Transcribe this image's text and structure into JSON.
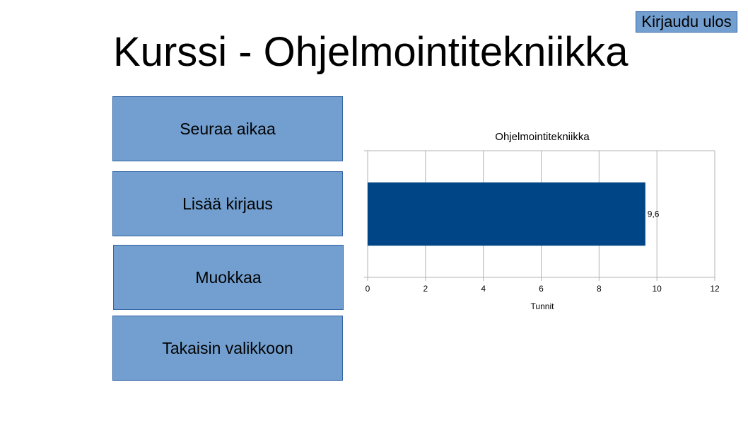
{
  "header": {
    "title": "Kurssi - Ohjelmointitekniikka",
    "logout_label": "Kirjaudu ulos"
  },
  "menu": {
    "items": [
      {
        "label": "Seuraa aikaa"
      },
      {
        "label": "Lisää kirjaus"
      },
      {
        "label": "Muokkaa"
      },
      {
        "label": "Takaisin valikkoon"
      }
    ]
  },
  "colors": {
    "button_fill": "#729fcf",
    "button_border": "#3465a4",
    "bar_fill": "#004586"
  },
  "chart_data": {
    "type": "bar",
    "orientation": "horizontal",
    "title": "Ohjelmointitekniikka",
    "categories": [
      ""
    ],
    "values": [
      9.6
    ],
    "value_labels": [
      "9,6"
    ],
    "xlabel": "Tunnit",
    "ylabel": "",
    "xlim": [
      0,
      12
    ],
    "xticks": [
      "0",
      "2",
      "4",
      "6",
      "8",
      "10",
      "12"
    ],
    "grid": true,
    "legend": "none"
  }
}
